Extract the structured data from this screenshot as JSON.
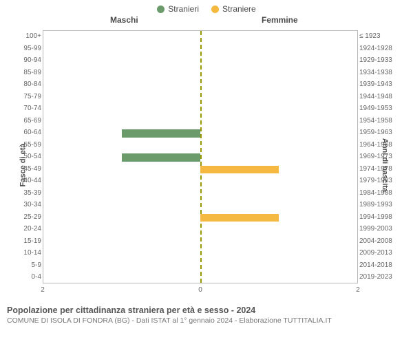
{
  "legend": {
    "male": {
      "label": "Stranieri",
      "color": "#6b9b6b"
    },
    "female": {
      "label": "Straniere",
      "color": "#f5b942"
    }
  },
  "headers": {
    "male": "Maschi",
    "female": "Femmine"
  },
  "axis_titles": {
    "left": "Fasce di età",
    "right": "Anni di nascita"
  },
  "chart": {
    "type": "population-pyramid",
    "x_max": 2,
    "x_ticks": [
      2,
      0,
      2
    ],
    "center_line_color": "#9a9a00",
    "border_color": "#b8b8b8",
    "background_color": "#ffffff",
    "male_color": "#6b9b6b",
    "female_color": "#f5b942",
    "rows": [
      {
        "age": "100+",
        "birth": "≤ 1923",
        "m": 0,
        "f": 0
      },
      {
        "age": "95-99",
        "birth": "1924-1928",
        "m": 0,
        "f": 0
      },
      {
        "age": "90-94",
        "birth": "1929-1933",
        "m": 0,
        "f": 0
      },
      {
        "age": "85-89",
        "birth": "1934-1938",
        "m": 0,
        "f": 0
      },
      {
        "age": "80-84",
        "birth": "1939-1943",
        "m": 0,
        "f": 0
      },
      {
        "age": "75-79",
        "birth": "1944-1948",
        "m": 0,
        "f": 0
      },
      {
        "age": "70-74",
        "birth": "1949-1953",
        "m": 0,
        "f": 0
      },
      {
        "age": "65-69",
        "birth": "1954-1958",
        "m": 0,
        "f": 0
      },
      {
        "age": "60-64",
        "birth": "1959-1963",
        "m": 1,
        "f": 0
      },
      {
        "age": "55-59",
        "birth": "1964-1968",
        "m": 0,
        "f": 0
      },
      {
        "age": "50-54",
        "birth": "1969-1973",
        "m": 1,
        "f": 0
      },
      {
        "age": "45-49",
        "birth": "1974-1978",
        "m": 0,
        "f": 1
      },
      {
        "age": "40-44",
        "birth": "1979-1983",
        "m": 0,
        "f": 0
      },
      {
        "age": "35-39",
        "birth": "1984-1988",
        "m": 0,
        "f": 0
      },
      {
        "age": "30-34",
        "birth": "1989-1993",
        "m": 0,
        "f": 0
      },
      {
        "age": "25-29",
        "birth": "1994-1998",
        "m": 0,
        "f": 1
      },
      {
        "age": "20-24",
        "birth": "1999-2003",
        "m": 0,
        "f": 0
      },
      {
        "age": "15-19",
        "birth": "2004-2008",
        "m": 0,
        "f": 0
      },
      {
        "age": "10-14",
        "birth": "2009-2013",
        "m": 0,
        "f": 0
      },
      {
        "age": "5-9",
        "birth": "2014-2018",
        "m": 0,
        "f": 0
      },
      {
        "age": "0-4",
        "birth": "2019-2023",
        "m": 0,
        "f": 0
      }
    ]
  },
  "caption": {
    "line1": "Popolazione per cittadinanza straniera per età e sesso - 2024",
    "line2": "COMUNE DI ISOLA DI FONDRA (BG) - Dati ISTAT al 1° gennaio 2024 - Elaborazione TUTTITALIA.IT"
  }
}
